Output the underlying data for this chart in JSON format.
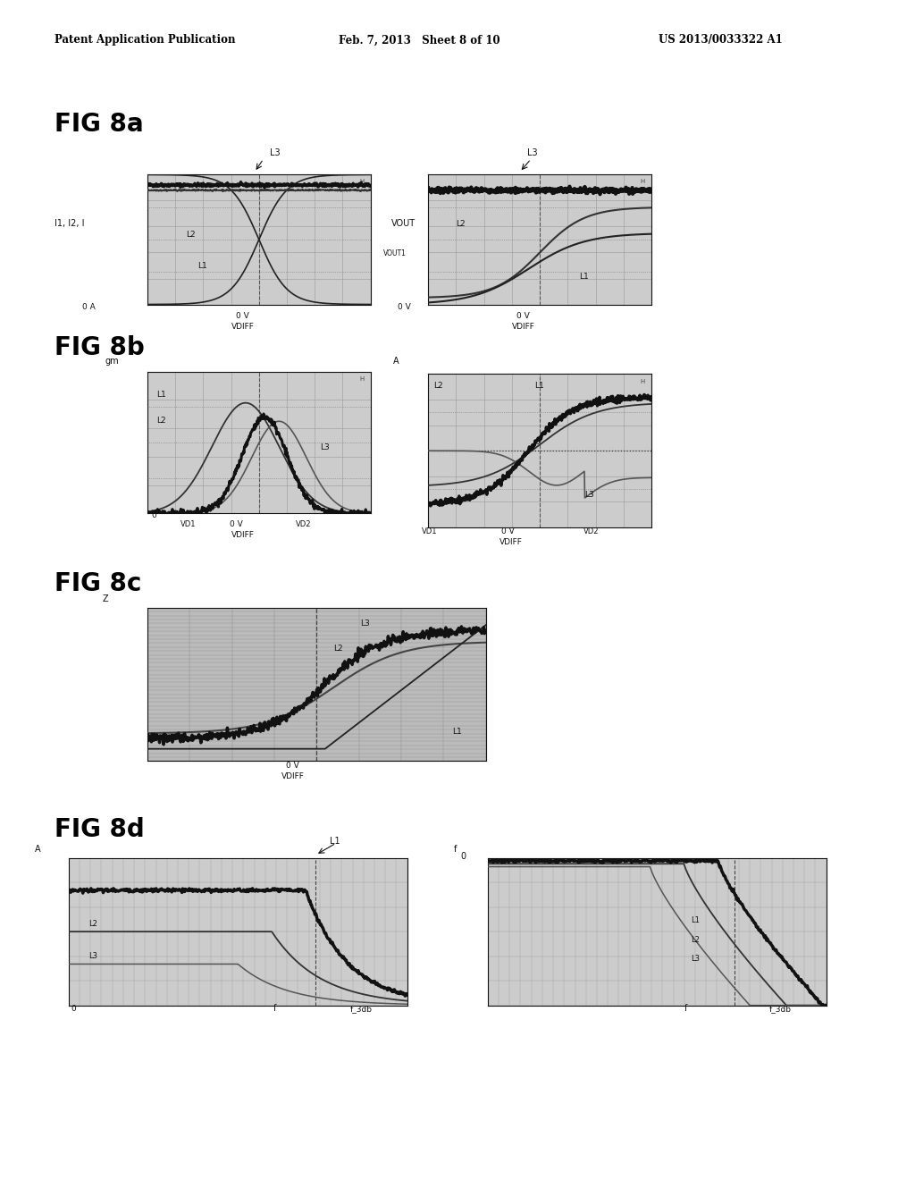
{
  "header_left": "Patent Application Publication",
  "header_mid": "Feb. 7, 2013   Sheet 8 of 10",
  "header_right": "US 2013/0033322 A1",
  "fig8a_label": "FIG 8a",
  "fig8b_label": "FIG 8b",
  "fig8c_label": "FIG 8c",
  "fig8d_label": "FIG 8d",
  "bg_color": "#ffffff",
  "plot_bg": "#cccccc",
  "grid_color": "#999999"
}
